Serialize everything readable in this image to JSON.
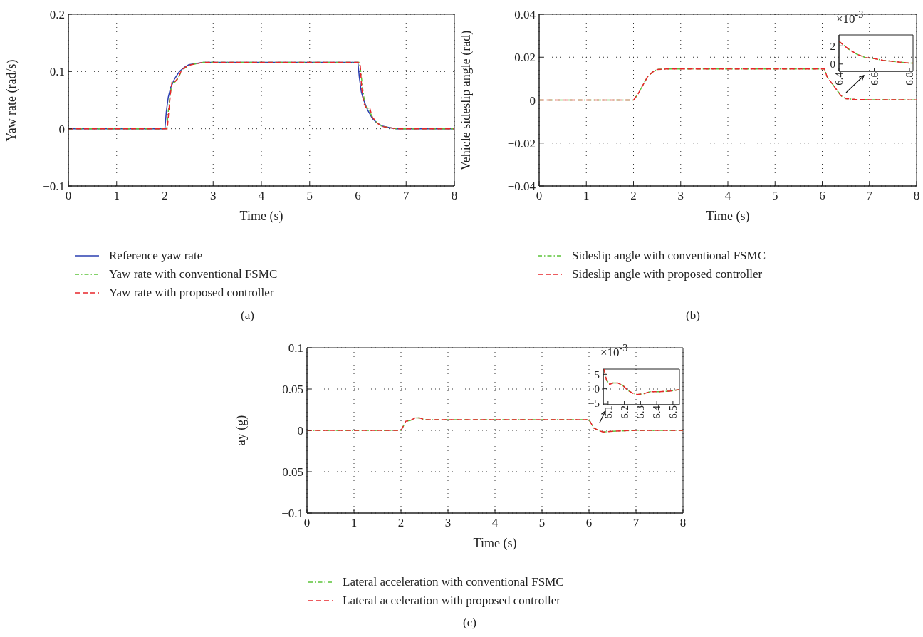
{
  "chart_data": [
    {
      "type": "line",
      "xlabel": "Time (s)",
      "ylabel": "Yaw rate (rad/s)",
      "xlim": [
        0,
        8
      ],
      "xticks": [
        0,
        1,
        2,
        3,
        4,
        5,
        6,
        7,
        8
      ],
      "ylim": [
        -0.1,
        0.2
      ],
      "yticks": [
        {
          "value": -0.1,
          "label": "−0.1"
        },
        0,
        0.1,
        0.2
      ],
      "grid": true,
      "legend": "bottom",
      "annotations": [
        "(a)"
      ],
      "series": [
        {
          "name": "Reference yaw rate",
          "color": "#2b3fb0",
          "line_style": "solid",
          "x": [
            0,
            2.0,
            2.03,
            2.07,
            2.12,
            2.2,
            2.3,
            2.4,
            2.5,
            2.65,
            2.8,
            3.5,
            6.0,
            6.03,
            6.07,
            6.12,
            6.2,
            6.3,
            6.4,
            6.5,
            6.65,
            6.8,
            8
          ],
          "values": [
            0,
            0,
            0.03,
            0.055,
            0.072,
            0.087,
            0.1,
            0.107,
            0.112,
            0.114,
            0.116,
            0.116,
            0.116,
            0.09,
            0.065,
            0.05,
            0.033,
            0.018,
            0.01,
            0.005,
            0.002,
            0,
            0
          ]
        },
        {
          "name": "Yaw rate with conventional FSMC",
          "color": "#5cc43a",
          "line_style": "dotted",
          "x": [
            0,
            2.04,
            2.07,
            2.11,
            2.15,
            2.2,
            2.27,
            2.35,
            2.45,
            2.55,
            2.8,
            3.5,
            6.03,
            6.06,
            6.1,
            6.15,
            6.22,
            6.3,
            6.4,
            6.5,
            6.65,
            6.8,
            8
          ],
          "values": [
            0,
            0,
            0.03,
            0.06,
            0.08,
            0.081,
            0.087,
            0.102,
            0.108,
            0.112,
            0.116,
            0.116,
            0.116,
            0.1,
            0.07,
            0.04,
            0.035,
            0.02,
            0.01,
            0.004,
            0.002,
            0,
            0
          ]
        },
        {
          "name": "Yaw rate with proposed controller",
          "color": "#e8262b",
          "line_style": "dashed",
          "x": [
            0,
            2.05,
            2.08,
            2.12,
            2.15,
            2.22,
            2.28,
            2.35,
            2.45,
            2.55,
            2.8,
            3.5,
            6.02,
            6.05,
            6.08,
            6.12,
            6.17,
            6.25,
            6.3,
            6.4,
            6.5,
            6.65,
            6.8,
            8
          ],
          "values": [
            0,
            0,
            0.03,
            0.065,
            0.083,
            0.083,
            0.09,
            0.103,
            0.109,
            0.112,
            0.116,
            0.116,
            0.116,
            0.11,
            0.07,
            0.045,
            0.037,
            0.035,
            0.02,
            0.01,
            0.004,
            0.002,
            0,
            0
          ]
        }
      ]
    },
    {
      "type": "line",
      "xlabel": "Time (s)",
      "ylabel": "Vehicle sideslip angle (rad)",
      "xlim": [
        0,
        8
      ],
      "xticks": [
        0,
        1,
        2,
        3,
        4,
        5,
        6,
        7,
        8
      ],
      "ylim": [
        -0.04,
        0.04
      ],
      "yticks": [
        {
          "value": -0.04,
          "label": "−0.04"
        },
        {
          "value": -0.02,
          "label": "−0.02"
        },
        0,
        0.02,
        0.04
      ],
      "grid": true,
      "legend": "bottom",
      "annotations": [
        "(b)"
      ],
      "series": [
        {
          "name": "Sideslip angle with conventional FSMC",
          "color": "#5cc43a",
          "line_style": "dotted",
          "x": [
            0,
            2.0,
            2.1,
            2.2,
            2.3,
            2.4,
            2.5,
            2.7,
            3.5,
            6.05,
            6.1,
            6.2,
            6.3,
            6.4,
            6.5,
            6.7,
            7,
            8
          ],
          "values": [
            0,
            0,
            0.003,
            0.007,
            0.011,
            0.013,
            0.0143,
            0.0145,
            0.0145,
            0.0145,
            0.011,
            0.008,
            0.005,
            0.002,
            0.0007,
            0.0003,
            0.0002,
            0.0001
          ]
        },
        {
          "name": "Sideslip angle with proposed controller",
          "color": "#e8262b",
          "line_style": "dashed",
          "x": [
            0,
            2.0,
            2.1,
            2.2,
            2.3,
            2.4,
            2.5,
            2.7,
            3.5,
            6.05,
            6.1,
            6.2,
            6.3,
            6.4,
            6.5,
            6.7,
            7,
            8
          ],
          "values": [
            0,
            0,
            0.003,
            0.007,
            0.011,
            0.013,
            0.0143,
            0.0145,
            0.0145,
            0.0145,
            0.011,
            0.008,
            0.005,
            0.002,
            0.0007,
            0.0003,
            0.0002,
            0.0001
          ]
        }
      ]
    },
    {
      "type": "line",
      "xlim": [
        6.4,
        6.82
      ],
      "xticks": [
        6.4,
        6.6,
        6.8
      ],
      "ylim": [
        -0.8,
        3.2
      ],
      "yticks": [
        0,
        2
      ],
      "annotations": [
        "×10$^{-3}$"
      ],
      "series": [
        {
          "color": "#5cc43a",
          "line_style": "dotted",
          "x": [
            6.4,
            6.45,
            6.5,
            6.55,
            6.6,
            6.65,
            6.7,
            6.75,
            6.8,
            6.82
          ],
          "values": [
            2.5,
            1.7,
            1.1,
            0.7,
            0.6,
            0.4,
            0.3,
            0.2,
            0.1,
            0.1
          ]
        },
        {
          "color": "#e8262b",
          "line_style": "dashed",
          "x": [
            6.4,
            6.45,
            6.5,
            6.55,
            6.6,
            6.65,
            6.7,
            6.75,
            6.8,
            6.82
          ],
          "values": [
            2.5,
            1.7,
            1.1,
            0.7,
            0.6,
            0.4,
            0.3,
            0.2,
            0.1,
            0.1
          ]
        }
      ]
    },
    {
      "type": "line",
      "xlabel": "Time (s)",
      "ylabel": "ay (g)",
      "xlim": [
        0,
        8
      ],
      "xticks": [
        0,
        1,
        2,
        3,
        4,
        5,
        6,
        7,
        8
      ],
      "ylim": [
        -0.1,
        0.1
      ],
      "yticks": [
        {
          "value": -0.1,
          "label": "−0.1"
        },
        {
          "value": -0.05,
          "label": "−0.05"
        },
        0,
        0.05,
        0.1
      ],
      "grid": true,
      "legend": "bottom",
      "annotations": [
        "(c)"
      ],
      "series": [
        {
          "name": "Lateral acceleration with conventional FSMC",
          "color": "#5cc43a",
          "line_style": "dotted",
          "x": [
            0,
            2.0,
            2.05,
            2.1,
            2.2,
            2.3,
            2.4,
            2.5,
            3.5,
            6.0,
            6.05,
            6.1,
            6.2,
            6.3,
            6.5,
            7,
            8
          ],
          "values": [
            0,
            0,
            0.005,
            0.011,
            0.012,
            0.015,
            0.015,
            0.013,
            0.013,
            0.013,
            0.008,
            0.003,
            0,
            -0.002,
            -0.001,
            0,
            0
          ]
        },
        {
          "name": "Lateral acceleration with proposed controller",
          "color": "#e8262b",
          "line_style": "dashed",
          "x": [
            0,
            2.0,
            2.05,
            2.1,
            2.2,
            2.3,
            2.4,
            2.5,
            3.5,
            6.0,
            6.05,
            6.1,
            6.2,
            6.3,
            6.5,
            7,
            8
          ],
          "values": [
            0,
            0,
            0.005,
            0.011,
            0.012,
            0.015,
            0.015,
            0.013,
            0.013,
            0.013,
            0.008,
            0.003,
            0,
            -0.002,
            -0.001,
            0,
            0
          ]
        }
      ]
    },
    {
      "type": "line",
      "xlim": [
        6.07,
        6.54
      ],
      "xticks": [
        6.1,
        6.2,
        6.3,
        6.4,
        6.5
      ],
      "ylim": [
        -5.5,
        6.8
      ],
      "yticks": [
        {
          "value": -5,
          "label": "−5"
        },
        0,
        5
      ],
      "annotations": [
        "×10$^{-3}$"
      ],
      "series": [
        {
          "color": "#5cc43a",
          "line_style": "dotted",
          "x": [
            6.075,
            6.09,
            6.11,
            6.13,
            6.16,
            6.19,
            6.22,
            6.25,
            6.28,
            6.32,
            6.36,
            6.42,
            6.48,
            6.54
          ],
          "values": [
            6.8,
            3,
            1.5,
            2,
            2,
            1.2,
            -0.5,
            -1.5,
            -2,
            -1.7,
            -1,
            -1,
            -0.8,
            -0.3
          ]
        },
        {
          "color": "#e8262b",
          "line_style": "dashed",
          "x": [
            6.075,
            6.09,
            6.11,
            6.13,
            6.16,
            6.19,
            6.22,
            6.25,
            6.28,
            6.32,
            6.36,
            6.42,
            6.48,
            6.54
          ],
          "values": [
            6.8,
            3,
            1.5,
            2,
            2,
            1.2,
            -0.5,
            -1.5,
            -2,
            -1.7,
            -1,
            -1,
            -0.8,
            -0.3
          ]
        }
      ]
    }
  ]
}
